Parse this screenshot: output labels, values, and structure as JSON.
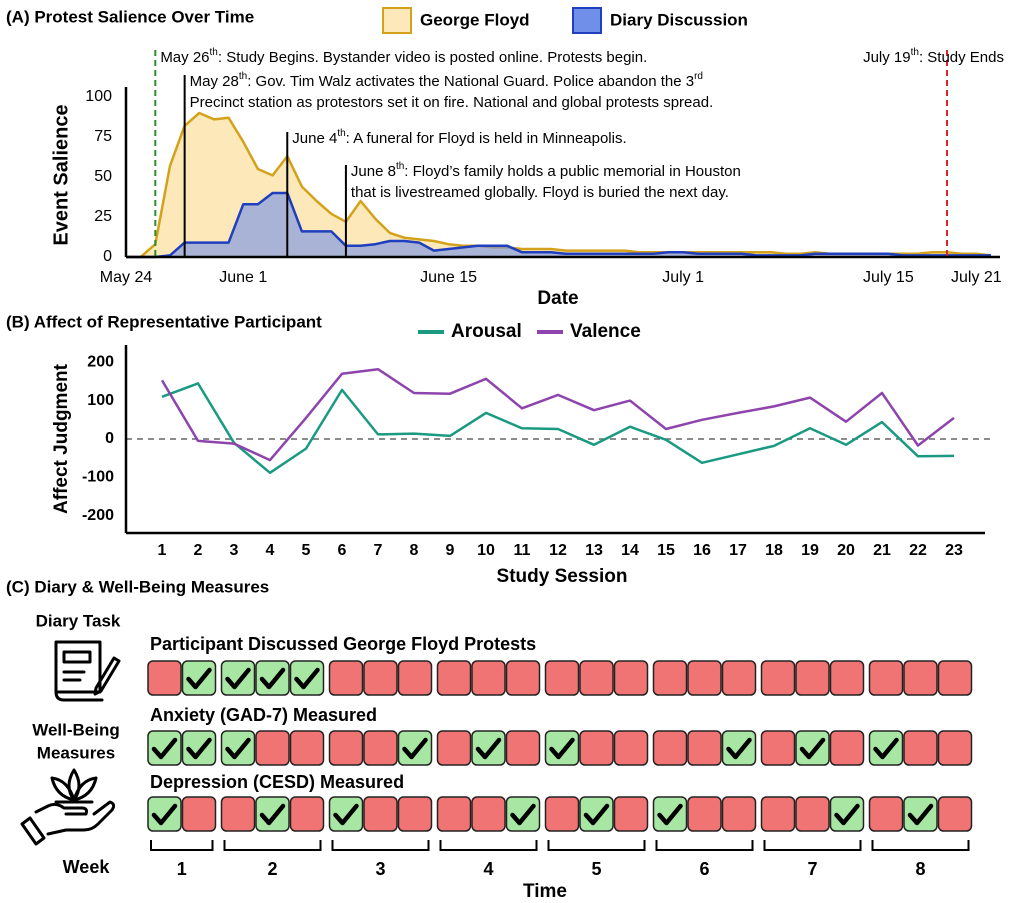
{
  "chart_data": [
    {
      "type": "area",
      "title": "(A) Protest Salience Over Time",
      "x_label": "Date",
      "y_label": "Event Salience",
      "x": [
        "May 24",
        "May 25",
        "May 26",
        "May 27",
        "May 28",
        "May 29",
        "May 30",
        "May 31",
        "June 1",
        "June 2",
        "June 3",
        "June 4",
        "June 5",
        "June 6",
        "June 7",
        "June 8",
        "June 9",
        "June 10",
        "June 11",
        "June 12",
        "June 13",
        "June 14",
        "June 15",
        "June 16",
        "June 17",
        "June 18",
        "June 19",
        "June 20",
        "June 21",
        "June 22",
        "June 23",
        "June 24",
        "June 25",
        "June 26",
        "June 27",
        "June 28",
        "June 29",
        "June 30",
        "July 1",
        "July 2",
        "July 3",
        "July 4",
        "July 5",
        "July 6",
        "July 7",
        "July 8",
        "July 9",
        "July 10",
        "July 11",
        "July 12",
        "July 13",
        "July 14",
        "July 15",
        "July 16",
        "July 17",
        "July 18",
        "July 19",
        "July 20",
        "July 21",
        "July 22"
      ],
      "series": [
        {
          "name": "George Floyd",
          "color": "#d4a21a",
          "fill": "#fce8b8",
          "values": [
            0,
            0,
            8,
            57,
            82,
            90,
            86,
            87,
            72,
            55,
            51,
            63,
            44,
            35,
            27,
            22,
            35,
            24,
            15,
            12,
            11,
            10,
            8,
            7,
            7,
            6,
            6,
            5,
            5,
            5,
            4,
            4,
            4,
            4,
            4,
            3,
            3,
            3,
            3,
            3,
            3,
            3,
            3,
            3,
            3,
            2,
            2,
            3,
            2,
            2,
            2,
            2,
            2,
            2,
            2,
            3,
            3,
            2,
            2,
            1
          ]
        },
        {
          "name": "Diary Discussion",
          "color": "#1f3fbf",
          "fill": "#6f8fe8",
          "values": [
            0,
            0,
            0,
            1,
            9,
            9,
            9,
            9,
            33,
            33,
            40,
            40,
            16,
            16,
            16,
            7,
            7,
            8,
            10,
            10,
            9,
            4,
            5,
            6,
            7,
            7,
            7,
            3,
            3,
            3,
            2,
            2,
            2,
            2,
            2,
            2,
            2,
            3,
            3,
            2,
            2,
            2,
            2,
            1,
            1,
            1,
            1,
            2,
            2,
            2,
            2,
            2,
            2,
            1,
            1,
            1,
            1,
            1,
            1,
            1
          ]
        }
      ],
      "xlim": [
        "May 24",
        "July 22"
      ],
      "xticks": [
        "May 24",
        "June 1",
        "June 15",
        "July 1",
        "July 15",
        "July 21"
      ],
      "ylim": [
        0,
        105
      ],
      "yticks": [
        0,
        25,
        50,
        75,
        100
      ],
      "annotations": [
        {
          "x": "May 26",
          "color": "#2e8b2e",
          "dashed": true,
          "lines": [
            [
              {
                "text": "May 26"
              },
              {
                "text": "th",
                "sup": true
              },
              {
                "text": ": Study Begins. Bystander video is posted online. Protests begin."
              }
            ]
          ]
        },
        {
          "x": "May 28",
          "color": "#000000",
          "dashed": false,
          "lines": [
            [
              {
                "text": "May 28"
              },
              {
                "text": "th",
                "sup": true
              },
              {
                "text": ": Gov. Tim Walz activates the National Guard. Police abandon the 3"
              },
              {
                "text": "rd",
                "sup": true
              }
            ],
            [
              {
                "text": "Precinct station as protestors set it on fire. National and global protests spread."
              }
            ]
          ]
        },
        {
          "x": "June 4",
          "color": "#000000",
          "dashed": false,
          "lines": [
            [
              {
                "text": "June 4"
              },
              {
                "text": "th",
                "sup": true
              },
              {
                "text": ": A funeral for Floyd is held in Minneapolis."
              }
            ]
          ]
        },
        {
          "x": "June 8",
          "color": "#000000",
          "dashed": false,
          "lines": [
            [
              {
                "text": "June 8"
              },
              {
                "text": "th",
                "sup": true
              },
              {
                "text": ": Floyd’s family holds a public memorial in Houston"
              }
            ],
            [
              {
                "text": "that is livestreamed globally. Floyd is buried the next day."
              }
            ]
          ]
        },
        {
          "x": "July 19",
          "color": "#d62728",
          "dashed": true,
          "align": "right",
          "lines": [
            [
              {
                "text": "July 19"
              },
              {
                "text": "th",
                "sup": true
              },
              {
                "text": ": Study Ends"
              }
            ]
          ]
        }
      ]
    },
    {
      "type": "line",
      "title": "(B) Affect of Representative Participant",
      "x_label": "Study Session",
      "y_label": "Affect Judgment",
      "x": [
        1,
        2,
        3,
        4,
        5,
        6,
        7,
        8,
        9,
        10,
        11,
        12,
        13,
        14,
        15,
        16,
        17,
        18,
        19,
        20,
        21,
        22,
        23
      ],
      "series": [
        {
          "name": "Arousal",
          "color": "#1a9a80",
          "values": [
            110,
            145,
            -10,
            -88,
            -25,
            128,
            12,
            14,
            8,
            68,
            28,
            26,
            -15,
            32,
            -2,
            -62,
            -40,
            -18,
            28,
            -15,
            44,
            -45,
            -44
          ]
        },
        {
          "name": "Valence",
          "color": "#8e44ad",
          "values": [
            153,
            -5,
            -12,
            -55,
            55,
            170,
            182,
            120,
            118,
            157,
            80,
            115,
            75,
            100,
            26,
            50,
            68,
            85,
            108,
            45,
            120,
            -17,
            55
          ]
        }
      ],
      "xlim": [
        0,
        24
      ],
      "xticks": [
        1,
        2,
        3,
        4,
        5,
        6,
        7,
        8,
        9,
        10,
        11,
        12,
        13,
        14,
        15,
        16,
        17,
        18,
        19,
        20,
        21,
        22,
        23
      ],
      "ylim": [
        -245,
        245
      ],
      "yticks": [
        -200,
        -100,
        0,
        100,
        200
      ],
      "reference_line": 0
    }
  ],
  "diary_measures": {
    "title": "(C) Diary & Well-Being Measures",
    "diary_label": "Diary Task",
    "well_being_label": [
      "Well-Being",
      "Measures"
    ],
    "week_label": "Week",
    "x_label": "Time",
    "weeks": [
      1,
      2,
      3,
      4,
      5,
      6,
      7,
      8
    ],
    "rows": [
      {
        "title": "Participant Discussed George Floyd Protests",
        "values": [
          [
            false,
            true
          ],
          [
            true,
            true,
            true
          ],
          [
            false,
            false,
            false
          ],
          [
            false,
            false,
            false
          ],
          [
            false,
            false,
            false
          ],
          [
            false,
            false,
            false
          ],
          [
            false,
            false,
            false
          ],
          [
            false,
            false,
            false
          ]
        ]
      },
      {
        "title": "Anxiety (GAD-7) Measured",
        "values": [
          [
            true,
            true
          ],
          [
            true,
            false,
            false
          ],
          [
            false,
            false,
            true
          ],
          [
            false,
            true,
            false
          ],
          [
            true,
            false,
            false
          ],
          [
            false,
            false,
            true
          ],
          [
            false,
            true,
            false
          ],
          [
            true,
            false,
            false
          ]
        ]
      },
      {
        "title": "Depression (CESD) Measured",
        "values": [
          [
            true,
            false
          ],
          [
            false,
            true,
            false
          ],
          [
            true,
            false,
            false
          ],
          [
            false,
            false,
            true
          ],
          [
            false,
            true,
            false
          ],
          [
            true,
            false,
            false
          ],
          [
            false,
            false,
            true
          ],
          [
            false,
            true,
            false
          ]
        ]
      }
    ]
  }
}
